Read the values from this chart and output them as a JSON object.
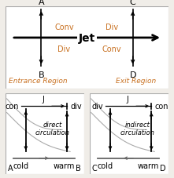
{
  "bg_color": "#f0ede8",
  "panel_bg": "#ffffff",
  "border_color": "#aaaaaa",
  "text_color": "#000000",
  "orange_color": "#c87020",
  "gray_line_color": "#aaaaaa",
  "jet_label": "Jet",
  "entrance_label": "Entrance Region",
  "exit_label": "Exit Region",
  "conv_upper": "Conv",
  "div_lower": "Div",
  "div_upper": "Div",
  "conv_lower": "Conv",
  "direct_circulation": "direct\ncirculation",
  "indirect_circulation": "indirect\ncirculation",
  "con_left": "con",
  "div_left": "div",
  "div_right": "div",
  "con_right": "con",
  "cold_label": "cold",
  "warm_label": "warm",
  "J_label": "J"
}
